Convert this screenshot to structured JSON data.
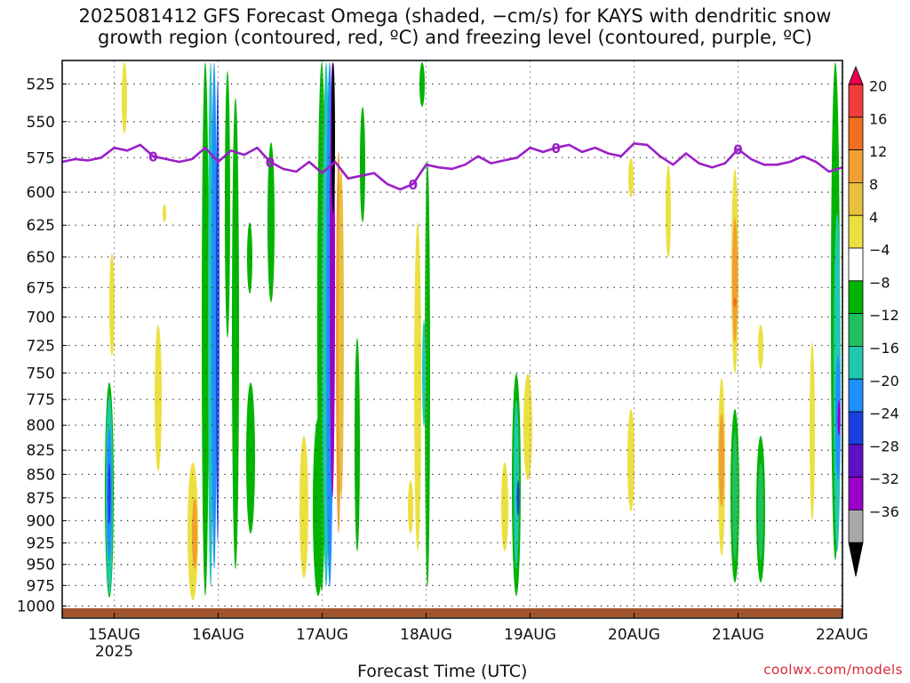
{
  "title": "2025081412 GFS Forecast Omega (shaded, −cm/s) for KAYS with dendritic snow\ngrowth region (contoured, red, ºC) and freezing level (contoured, purple, ºC)",
  "watermark": "coolwx.com/models",
  "chart_data": {
    "type": "heatmap",
    "title": "2025081412 GFS Forecast Omega (shaded, −cm/s) for KAYS with dendritic snow growth region (contoured, red, ºC) and freezing level (contoured, purple, ºC)",
    "xlabel": "Forecast Time (UTC)",
    "ylabel": "",
    "x_ticks": [
      "15AUG",
      "16AUG",
      "17AUG",
      "18AUG",
      "19AUG",
      "20AUG",
      "21AUG",
      "22AUG"
    ],
    "x_tick_sublabel": "2025",
    "y_ticks": [
      525,
      550,
      575,
      600,
      625,
      650,
      675,
      700,
      725,
      750,
      775,
      800,
      825,
      850,
      875,
      900,
      925,
      950,
      975,
      1000
    ],
    "y_axis": "pressure (hPa), inverted, log scale",
    "ylim": [
      1015,
      510
    ],
    "xlim": [
      "2025-08-14T12",
      "2025-08-22T00"
    ],
    "grid": true,
    "colorbar": {
      "labels": [
        "20",
        "16",
        "12",
        "8",
        "4",
        "−4",
        "−8",
        "−12",
        "−16",
        "−20",
        "−24",
        "−28",
        "−32",
        "−36"
      ],
      "colors": [
        "#e8004f",
        "#f03c3c",
        "#f07020",
        "#f0a030",
        "#e8c040",
        "#ece040",
        "#ffffff",
        "#00b400",
        "#20c060",
        "#20c8b0",
        "#1e90ff",
        "#1c40e0",
        "#6010c8",
        "#9a00c8",
        "#a8a8a8",
        "#000000"
      ]
    },
    "freezing_level": {
      "label": "0",
      "color": "#9b1fc8",
      "series": [
        [
          "08-14T12",
          578
        ],
        [
          "08-14T15",
          576
        ],
        [
          "08-14T18",
          577
        ],
        [
          "08-14T21",
          575
        ],
        [
          "08-15T00",
          568
        ],
        [
          "08-15T03",
          570
        ],
        [
          "08-15T06",
          566
        ],
        [
          "08-15T09",
          574
        ],
        [
          "08-15T12",
          576
        ],
        [
          "08-15T15",
          578
        ],
        [
          "08-15T18",
          576
        ],
        [
          "08-15T21",
          568
        ],
        [
          "08-16T00",
          578
        ],
        [
          "08-16T03",
          570
        ],
        [
          "08-16T06",
          573
        ],
        [
          "08-16T09",
          568
        ],
        [
          "08-16T12",
          578
        ],
        [
          "08-16T15",
          583
        ],
        [
          "08-16T18",
          585
        ],
        [
          "08-16T21",
          578
        ],
        [
          "08-17T00",
          586
        ],
        [
          "08-17T03",
          578
        ],
        [
          "08-17T06",
          590
        ],
        [
          "08-17T09",
          588
        ],
        [
          "08-17T12",
          586
        ],
        [
          "08-17T15",
          594
        ],
        [
          "08-17T18",
          598
        ],
        [
          "08-17T21",
          594
        ],
        [
          "08-18T00",
          580
        ],
        [
          "08-18T03",
          582
        ],
        [
          "08-18T06",
          583
        ],
        [
          "08-18T09",
          580
        ],
        [
          "08-18T12",
          574
        ],
        [
          "08-18T15",
          579
        ],
        [
          "08-18T18",
          577
        ],
        [
          "08-18T21",
          575
        ],
        [
          "08-19T00",
          568
        ],
        [
          "08-19T03",
          571
        ],
        [
          "08-19T06",
          568
        ],
        [
          "08-19T09",
          566
        ],
        [
          "08-19T12",
          571
        ],
        [
          "08-19T15",
          568
        ],
        [
          "08-19T18",
          572
        ],
        [
          "08-19T21",
          574
        ],
        [
          "08-20T00",
          565
        ],
        [
          "08-20T03",
          566
        ],
        [
          "08-20T06",
          574
        ],
        [
          "08-20T09",
          580
        ],
        [
          "08-20T12",
          572
        ],
        [
          "08-20T15",
          579
        ],
        [
          "08-20T18",
          582
        ],
        [
          "08-20T21",
          579
        ],
        [
          "08-21T00",
          569
        ],
        [
          "08-21T03",
          576
        ],
        [
          "08-21T06",
          580
        ],
        [
          "08-21T09",
          580
        ],
        [
          "08-21T12",
          578
        ],
        [
          "08-21T15",
          574
        ],
        [
          "08-21T18",
          578
        ],
        [
          "08-21T21",
          585
        ],
        [
          "08-22T00",
          582
        ]
      ]
    }
  }
}
